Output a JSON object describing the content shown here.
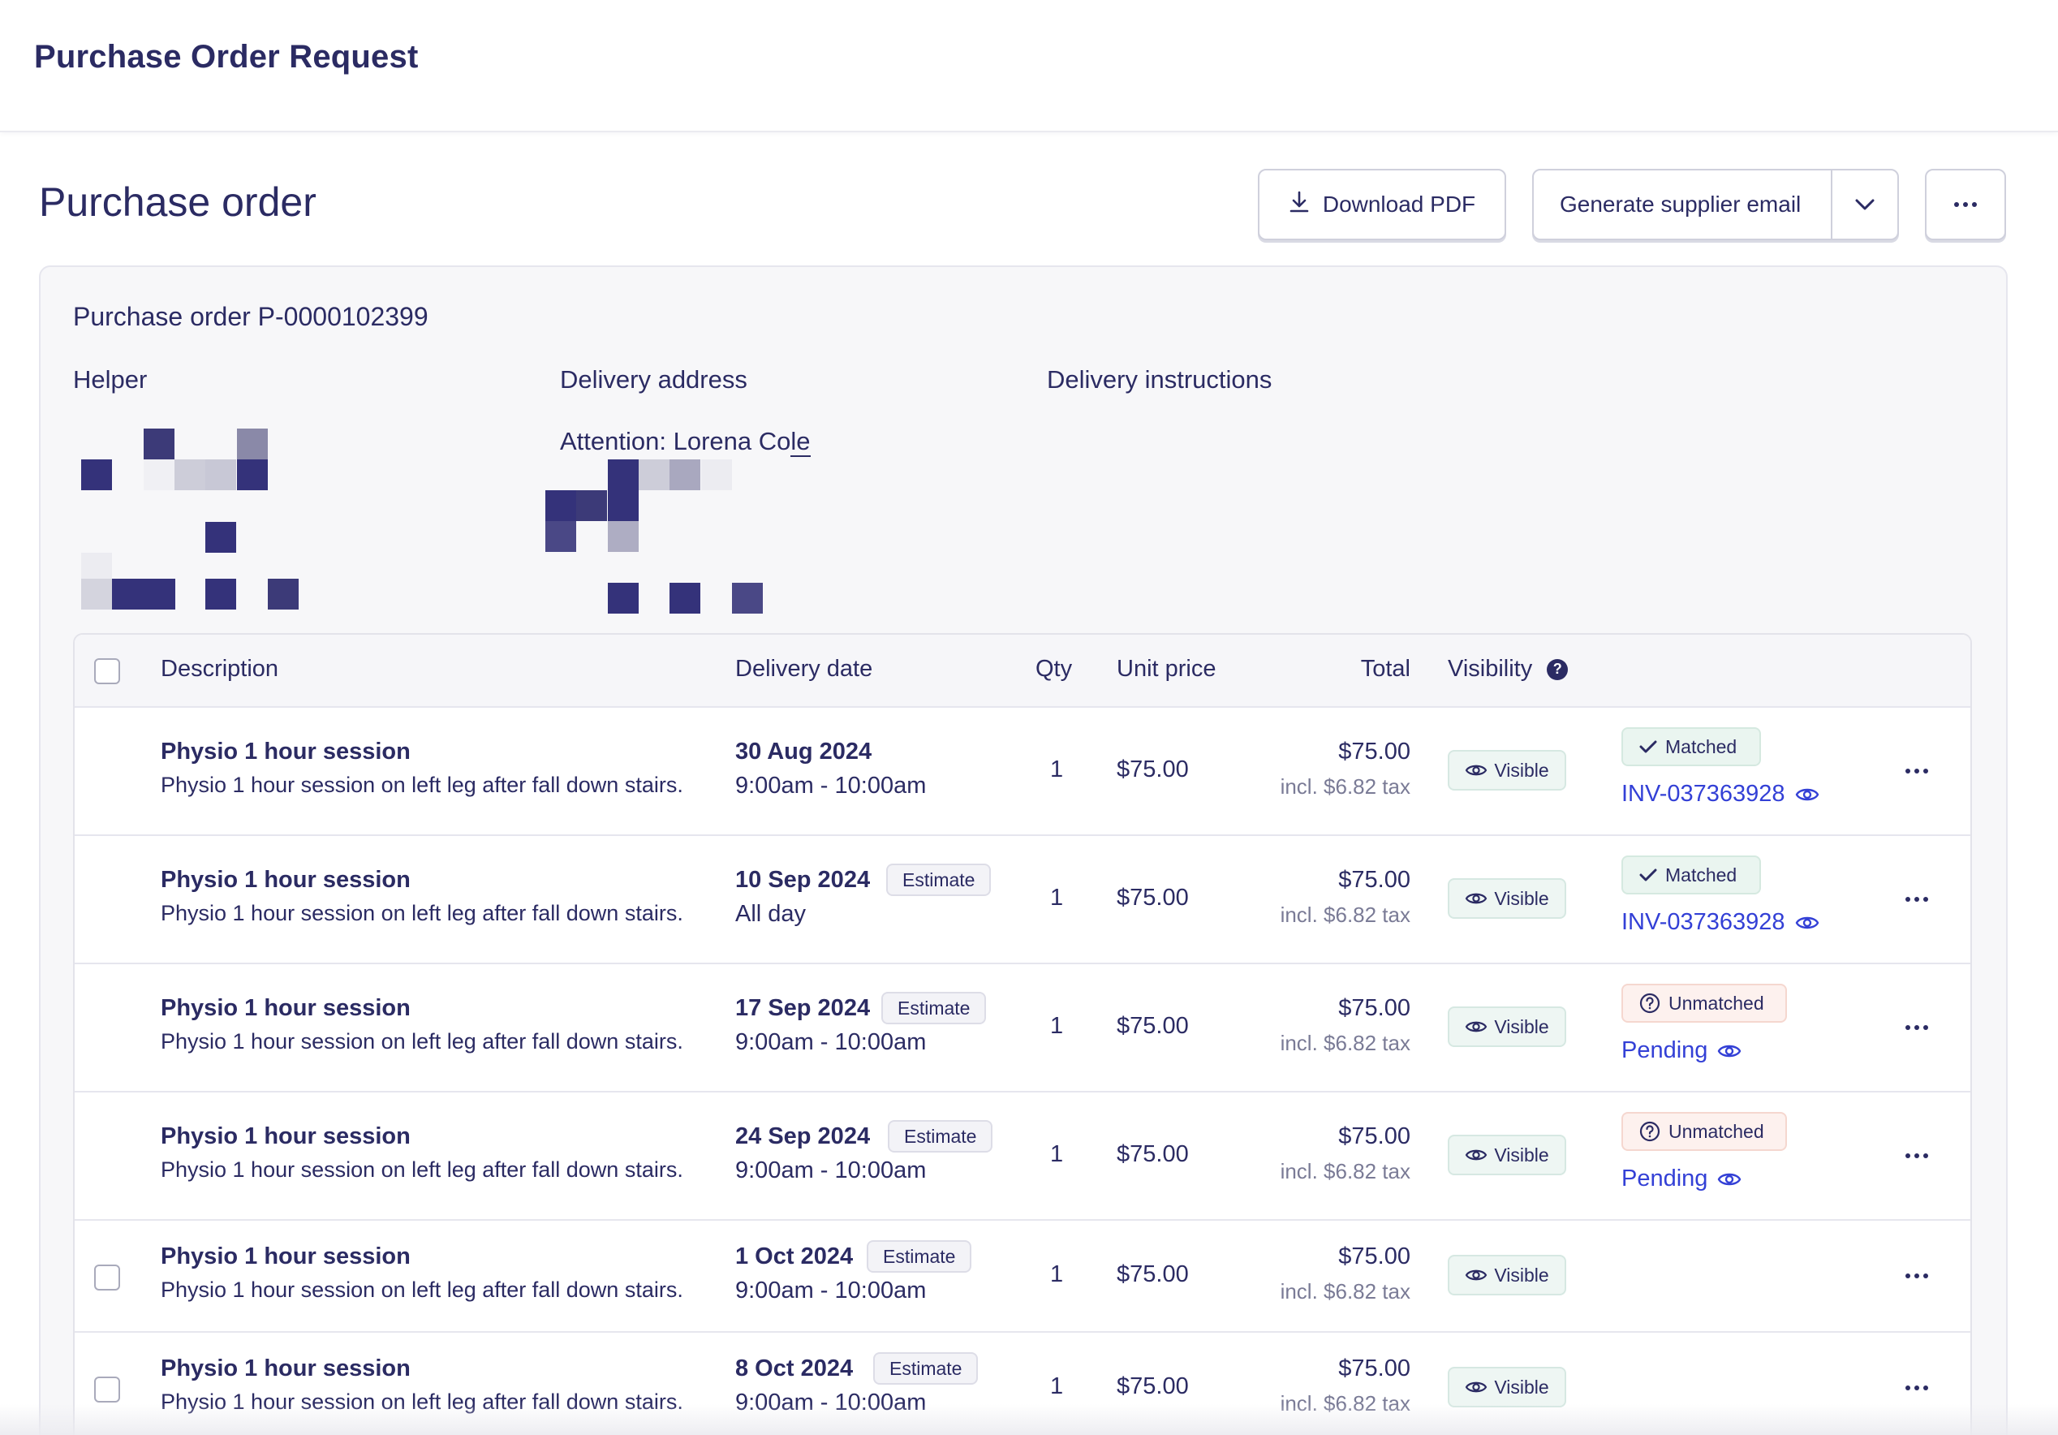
{
  "app_title": "Purchase Order Request",
  "page_title": "Purchase order",
  "actions": {
    "download_pdf": "Download PDF",
    "generate_email": "Generate supplier email"
  },
  "order": {
    "number_label": "Purchase order P-0000102399",
    "helper_label": "Helper",
    "delivery_address_label": "Delivery address",
    "delivery_instructions_label": "Delivery instructions",
    "attention_prefix": "Attention: Lorena Co",
    "attention_suffix": "le"
  },
  "table": {
    "columns": {
      "description": "Description",
      "delivery_date": "Delivery date",
      "qty": "Qty",
      "unit_price": "Unit price",
      "total": "Total",
      "visibility": "Visibility"
    },
    "rows": [
      {
        "title": "Physio 1 hour session",
        "desc": "Physio 1 hour session on left leg after fall down stairs.",
        "date": "30 Aug 2024",
        "time": "9:00am - 10:00am",
        "estimate": "",
        "qty": "1",
        "price": "$75.00",
        "total": "$75.00",
        "tax": "incl. $6.82 tax",
        "visibility": "Visible",
        "status": "Matched",
        "invoice": "INV-037363928"
      },
      {
        "title": "Physio 1 hour session",
        "desc": "Physio 1 hour session on left leg after fall down stairs.",
        "date": "10 Sep 2024",
        "time": "All day",
        "estimate": "Estimate",
        "qty": "1",
        "price": "$75.00",
        "total": "$75.00",
        "tax": "incl. $6.82 tax",
        "visibility": "Visible",
        "status": "Matched",
        "invoice": "INV-037363928"
      },
      {
        "title": "Physio 1 hour session",
        "desc": "Physio 1 hour session on left leg after fall down stairs.",
        "date": "17 Sep 2024",
        "time": "9:00am - 10:00am",
        "estimate": "Estimate",
        "qty": "1",
        "price": "$75.00",
        "total": "$75.00",
        "tax": "incl. $6.82 tax",
        "visibility": "Visible",
        "status": "Unmatched",
        "invoice": "Pending"
      },
      {
        "title": "Physio 1 hour session",
        "desc": "Physio 1 hour session on left leg after fall down stairs.",
        "date": "24 Sep 2024",
        "time": "9:00am - 10:00am",
        "estimate": "Estimate",
        "qty": "1",
        "price": "$75.00",
        "total": "$75.00",
        "tax": "incl. $6.82 tax",
        "visibility": "Visible",
        "status": "Unmatched",
        "invoice": "Pending"
      },
      {
        "title": "Physio 1 hour session",
        "desc": "Physio 1 hour session on left leg after fall down stairs.",
        "date": "1 Oct 2024",
        "time": "9:00am - 10:00am",
        "estimate": "Estimate",
        "qty": "1",
        "price": "$75.00",
        "total": "$75.00",
        "tax": "incl. $6.82 tax",
        "visibility": "Visible",
        "status": "",
        "invoice": ""
      },
      {
        "title": "Physio 1 hour session",
        "desc": "Physio 1 hour session on left leg after fall down stairs.",
        "date": "8 Oct 2024",
        "time": "9:00am - 10:00am",
        "estimate": "Estimate",
        "qty": "1",
        "price": "$75.00",
        "total": "$75.00",
        "tax": "incl. $6.82 tax",
        "visibility": "Visible",
        "status": "",
        "invoice": ""
      }
    ]
  },
  "colors": {
    "primary_text": "#2b2b63",
    "link": "#3340d6",
    "matched_bg": "#eaf5f0",
    "unmatched_bg": "#fdf1ee",
    "visible_bg": "#eef6f3"
  }
}
